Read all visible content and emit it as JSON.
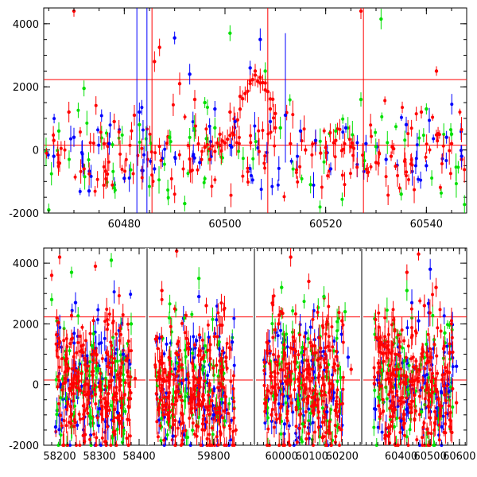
{
  "colors": {
    "red": "#ff0000",
    "green": "#00e000",
    "blue": "#0000ff",
    "axis": "#000000"
  },
  "chart_data": [
    {
      "type": "scatter",
      "title": "",
      "xlabel": "",
      "ylabel": "",
      "xlim": [
        60464,
        60548
      ],
      "ylim": [
        -2000,
        4500
      ],
      "x_ticks": [
        60480,
        60500,
        60520,
        60540
      ],
      "y_ticks": [
        -2000,
        0,
        2000,
        4000
      ],
      "grid": false,
      "error_bars": true,
      "hlines": [
        2230,
        150
      ],
      "vlines": [
        60485.5,
        60508.5,
        60527.5
      ],
      "series": [
        {
          "color": "red",
          "points": [
            [
              60466,
              300
            ],
            [
              60469,
              1200
            ],
            [
              60470,
              4400
            ],
            [
              60472,
              -600
            ],
            [
              60476,
              200
            ],
            [
              60478,
              900
            ],
            [
              60482,
              1100
            ],
            [
              60486,
              2800
            ],
            [
              60487,
              3250
            ],
            [
              60491,
              2100
            ],
            [
              60494,
              1600
            ],
            [
              60497,
              -300
            ],
            [
              60499,
              500
            ],
            [
              60501,
              1200
            ],
            [
              60503,
              1700
            ],
            [
              60505,
              2200
            ],
            [
              60506,
              2500
            ],
            [
              60507,
              2300
            ],
            [
              60508,
              1900
            ],
            [
              60509,
              1300
            ],
            [
              60510,
              700
            ],
            [
              60513,
              200
            ],
            [
              60516,
              0
            ],
            [
              60519,
              -100
            ],
            [
              60522,
              300
            ],
            [
              60525,
              100
            ],
            [
              60527,
              4400
            ],
            [
              60530,
              -400
            ],
            [
              60533,
              -200
            ],
            [
              60536,
              -700
            ],
            [
              60539,
              1200
            ],
            [
              60542,
              2500
            ],
            [
              60545,
              200
            ],
            [
              60547,
              -300
            ]
          ]
        },
        {
          "color": "green",
          "points": [
            [
              60465,
              -1900
            ],
            [
              60467,
              600
            ],
            [
              60472,
              1950
            ],
            [
              60478,
              -1200
            ],
            [
              60483,
              800
            ],
            [
              60489,
              400
            ],
            [
              60492,
              -1700
            ],
            [
              60496,
              1500
            ],
            [
              60498,
              700
            ],
            [
              60501,
              3700
            ],
            [
              60508,
              2500
            ],
            [
              60511,
              700
            ],
            [
              60517,
              -1100
            ],
            [
              60522,
              600
            ],
            [
              60527,
              1600
            ],
            [
              60531,
              4150
            ],
            [
              60535,
              -1400
            ],
            [
              60540,
              1300
            ],
            [
              60545,
              500
            ]
          ]
        },
        {
          "color": "blue",
          "points": [
            [
              60466,
              -200
            ],
            [
              60470,
              400
            ],
            [
              60473,
              -1300
            ],
            [
              60477,
              200
            ],
            [
              60480,
              -900
            ],
            [
              60483,
              1200
            ],
            [
              60486,
              -600
            ],
            [
              60490,
              3550
            ],
            [
              60493,
              2400
            ],
            [
              60495,
              -400
            ],
            [
              60498,
              1300
            ],
            [
              60502,
              900
            ],
            [
              60505,
              2600
            ],
            [
              60507,
              3500
            ],
            [
              60509,
              900
            ],
            [
              60512,
              1100
            ],
            [
              60515,
              600
            ],
            [
              60518,
              300
            ],
            [
              60521,
              -600
            ],
            [
              60524,
              700
            ],
            [
              60528,
              200
            ],
            [
              60532,
              -300
            ],
            [
              60536,
              800
            ],
            [
              60540,
              -500
            ],
            [
              60544,
              400
            ],
            [
              60547,
              -200
            ]
          ]
        }
      ]
    },
    {
      "type": "scatter",
      "title": "",
      "xlabel": "",
      "ylabel": "",
      "ylim": [
        -2000,
        4500
      ],
      "y_ticks": [
        -2000,
        0,
        2000,
        4000
      ],
      "grid": false,
      "error_bars": true,
      "broken_x_axis": true,
      "hlines": [
        2230,
        150
      ],
      "segments": [
        {
          "xlim": [
            58160,
            58420
          ],
          "x_ticks": [
            58200,
            58300,
            58400
          ]
        },
        {
          "xlim": [
            59620,
            59910
          ],
          "x_ticks": [
            59800
          ]
        },
        {
          "xlim": [
            59910,
            60265
          ],
          "x_ticks": [
            60000,
            60100,
            60200
          ]
        },
        {
          "xlim": [
            60265,
            60625
          ],
          "x_ticks": [
            60400,
            60500,
            60600
          ]
        }
      ],
      "series": [
        {
          "color": "red",
          "points": [
            [
              58180,
              3600
            ],
            [
              58200,
              4200
            ],
            [
              58230,
              1500
            ],
            [
              58260,
              -700
            ],
            [
              58290,
              3900
            ],
            [
              58320,
              600
            ],
            [
              58350,
              -1200
            ],
            [
              58390,
              200
            ],
            [
              59660,
              3100
            ],
            [
              59700,
              4400
            ],
            [
              59740,
              -800
            ],
            [
              59780,
              2600
            ],
            [
              59820,
              400
            ],
            [
              59860,
              -1500
            ],
            [
              59990,
              2000
            ],
            [
              60030,
              4200
            ],
            [
              60060,
              -1000
            ],
            [
              60090,
              3400
            ],
            [
              60120,
              800
            ],
            [
              60160,
              -1600
            ],
            [
              60200,
              2100
            ],
            [
              60230,
              500
            ],
            [
              60380,
              1000
            ],
            [
              60420,
              3700
            ],
            [
              60460,
              4300
            ],
            [
              60480,
              2600
            ],
            [
              60500,
              -1100
            ],
            [
              60520,
              3200
            ],
            [
              60560,
              400
            ],
            [
              60590,
              -600
            ]
          ]
        },
        {
          "color": "green",
          "points": [
            [
              58180,
              2800
            ],
            [
              58230,
              3700
            ],
            [
              58280,
              -1100
            ],
            [
              58330,
              4100
            ],
            [
              58380,
              2000
            ],
            [
              59680,
              2200
            ],
            [
              59760,
              3500
            ],
            [
              59830,
              -1200
            ],
            [
              60000,
              3200
            ],
            [
              60070,
              -1300
            ],
            [
              60140,
              2900
            ],
            [
              60210,
              2400
            ],
            [
              60420,
              3100
            ],
            [
              60470,
              -900
            ],
            [
              60550,
              1700
            ]
          ]
        },
        {
          "color": "blue",
          "points": [
            [
              58190,
              -1400
            ],
            [
              58240,
              2700
            ],
            [
              58300,
              -800
            ],
            [
              58360,
              1000
            ],
            [
              59690,
              -1700
            ],
            [
              59760,
              2900
            ],
            [
              59800,
              -1000
            ],
            [
              59850,
              1400
            ],
            [
              60010,
              -1300
            ],
            [
              60080,
              1700
            ],
            [
              60150,
              -900
            ],
            [
              60220,
              900
            ],
            [
              60400,
              -1200
            ],
            [
              60460,
              2100
            ],
            [
              60500,
              3800
            ],
            [
              60540,
              -1400
            ],
            [
              60590,
              600
            ]
          ]
        }
      ]
    }
  ]
}
